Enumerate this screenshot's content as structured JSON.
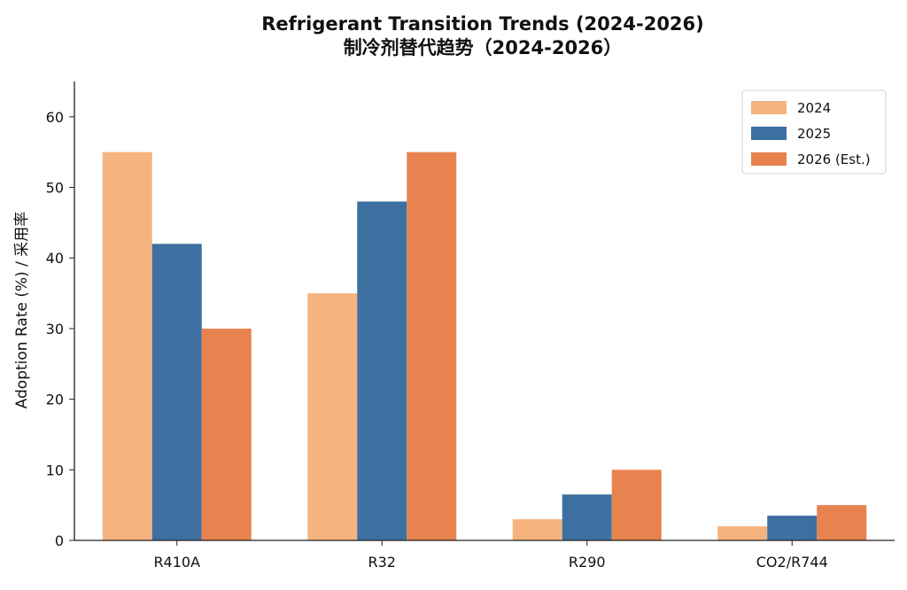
{
  "chart_data": {
    "type": "bar",
    "title": "Refrigerant Transition Trends (2024-2026)",
    "subtitle": "制冷剂替代趋势（2024-2026）",
    "xlabel": "",
    "ylabel": "Adoption Rate (%) / 采用率",
    "categories": [
      "R410A",
      "R32",
      "R290",
      "CO2/R744"
    ],
    "series": [
      {
        "name": "2024",
        "values": [
          55,
          35,
          3,
          2
        ],
        "color": "#F5B47F"
      },
      {
        "name": "2025",
        "values": [
          42,
          48,
          6.5,
          3.5
        ],
        "color": "#3D70A0"
      },
      {
        "name": "2026 (Est.)",
        "values": [
          30,
          55,
          10,
          5
        ],
        "color": "#E88350"
      }
    ],
    "ylim": [
      0,
      65
    ],
    "yticks": [
      0,
      10,
      20,
      30,
      40,
      50,
      60
    ],
    "grid": false,
    "legend_position": "top-right"
  }
}
